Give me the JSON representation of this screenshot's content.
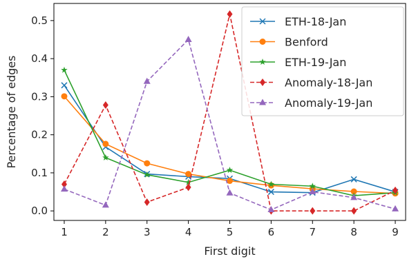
{
  "chart_data": {
    "type": "line",
    "xlabel": "First digit",
    "ylabel": "Percentage of edges",
    "x": [
      1,
      2,
      3,
      4,
      5,
      6,
      7,
      8,
      9
    ],
    "xticks": [
      "1",
      "2",
      "3",
      "4",
      "5",
      "6",
      "7",
      "8",
      "9"
    ],
    "yticks": [
      "0.0",
      "0.1",
      "0.2",
      "0.3",
      "0.4",
      "0.5"
    ],
    "xlim": [
      0.75,
      9.25
    ],
    "ylim": [
      -0.025,
      0.545
    ],
    "legend_position": "top-right",
    "grid": false,
    "series": [
      {
        "name": "ETH-18-Jan",
        "color": "#1f77b4",
        "marker": "x",
        "dash": "solid",
        "values": [
          0.33,
          0.168,
          0.097,
          0.09,
          0.085,
          0.05,
          0.048,
          0.083,
          0.05
        ]
      },
      {
        "name": "Benford",
        "color": "#ff7f0e",
        "marker": "circle",
        "dash": "solid",
        "values": [
          0.301,
          0.176,
          0.125,
          0.097,
          0.079,
          0.067,
          0.058,
          0.051,
          0.046
        ]
      },
      {
        "name": "ETH-19-Jan",
        "color": "#2ca02c",
        "marker": "star",
        "dash": "solid",
        "values": [
          0.37,
          0.14,
          0.095,
          0.075,
          0.107,
          0.07,
          0.065,
          0.04,
          0.048
        ]
      },
      {
        "name": "Anomaly-18-Jan",
        "color": "#d62728",
        "marker": "diamond",
        "dash": "dashed",
        "values": [
          0.07,
          0.278,
          0.023,
          0.062,
          0.517,
          0.0,
          0.0,
          0.0,
          0.054
        ]
      },
      {
        "name": "Anomaly-19-Jan",
        "color": "#9467bd",
        "marker": "triangle",
        "dash": "dashed",
        "values": [
          0.057,
          0.015,
          0.34,
          0.45,
          0.047,
          0.003,
          0.05,
          0.035,
          0.005
        ]
      }
    ]
  }
}
